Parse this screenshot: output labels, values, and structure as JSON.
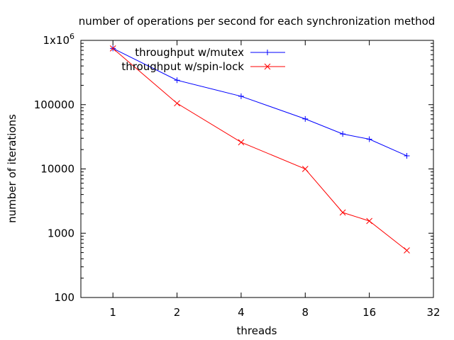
{
  "chart_data": {
    "type": "line",
    "title": "number of operations per second for each synchronization method",
    "xlabel": "threads",
    "ylabel": "number of iterations",
    "x_scale": "log2",
    "y_scale": "log10",
    "xlim": [
      0.707,
      32
    ],
    "ylim": [
      100,
      1000000
    ],
    "x_ticks": [
      1,
      2,
      4,
      8,
      16,
      32
    ],
    "x_tick_labels": [
      "1",
      "2",
      "4",
      "8",
      "16",
      "32"
    ],
    "y_ticks": [
      100,
      1000,
      10000,
      100000,
      1000000
    ],
    "y_tick_labels": [
      "100",
      "1000",
      "10000",
      "100000",
      "1x10"
    ],
    "y_top_exponent": "6",
    "grid": false,
    "legend_position": "top-right",
    "series": [
      {
        "name": "throughput w/mutex",
        "color": "#0000ff",
        "marker": "plus",
        "x": [
          1,
          2,
          4,
          8,
          12,
          16,
          24
        ],
        "values": [
          750000,
          240000,
          135000,
          60000,
          35000,
          29000,
          16000
        ]
      },
      {
        "name": "throughput w/spin-lock",
        "color": "#ff0000",
        "marker": "cross",
        "x": [
          1,
          2,
          4,
          8,
          12,
          16,
          24
        ],
        "values": [
          750000,
          105000,
          26000,
          10000,
          2100,
          1550,
          540
        ]
      }
    ]
  }
}
